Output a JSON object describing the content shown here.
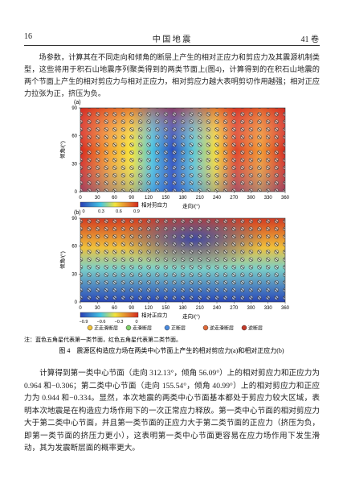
{
  "header": {
    "page_number": "16",
    "journal": "中 国 地 震",
    "volume": "41 卷"
  },
  "intro": "场参数，计算其在不同走向和倾角的断层上产生的相对正应力和剪应力及其震源机制类型，这些将用于积石山地震序列聚类得到的两类节面上(图4)，计算得到的在积石山地震的两个节面上产生的相对剪应力与相对正应力，相对剪应力越大表明剪切作用越强；相对正应力拉张为正，挤压为负。",
  "figure": {
    "panels": [
      {
        "label": "(a)",
        "y_label": "倾角/(°)",
        "x_label": "走向/(°)",
        "xticks": [
          0,
          30,
          60,
          90,
          120,
          150,
          180,
          210,
          240,
          270,
          300,
          330,
          360
        ],
        "yticks": [
          0,
          30,
          60,
          90
        ],
        "colorbar_label": "相对剪应力",
        "colorbar_ticks": [
          "0",
          "0.3",
          "0.6",
          "0.9"
        ]
      },
      {
        "label": "(b)",
        "y_label": "倾角/(°)",
        "x_label": "走向/(°)",
        "xticks": [
          0,
          30,
          60,
          90,
          120,
          150,
          180,
          210,
          240,
          270,
          300,
          330,
          360
        ],
        "yticks": [
          0,
          30,
          60,
          90
        ],
        "colorbar_label": "相对正应力",
        "colorbar_ticks": [
          "−0.9",
          "−0.6",
          "−0.3",
          "0"
        ]
      }
    ],
    "legend": [
      "正走滑断层",
      "走滑断层",
      "正断层",
      "逆走滑断层",
      "逆断层"
    ],
    "note": "注：蓝色五角星代表第一类节面，红色五角星代表第二类节面。",
    "caption": "图 4　震源区构造应力场在两类中心节面上产生的相对剪应力(a)和相对正应力(b)"
  },
  "body": "计算得到第一类中心节面（走向 312.13°，倾角 56.09°）上的相对剪应力和正应力为 0.964 和−0.306；第二类中心节面（走向 155.54°，倾角 40.99°）上的相对剪应力和正应力为 0.944 和−0.334。显然，本次地震的两类中心节面基本都处于剪应力较大区域，表明本次地震是在构造应力场作用下的一次正常应力释放。第一类中心节面的相对剪应力大于第二类中心节面，并且第一类节面的正应力大于第二类节面的正应力（挤压为负，即第一类节面的挤压力更小），这表明第一类中心节面更容易在应力场作用下发生滑动，其为发震断层面的概率更大。"
}
